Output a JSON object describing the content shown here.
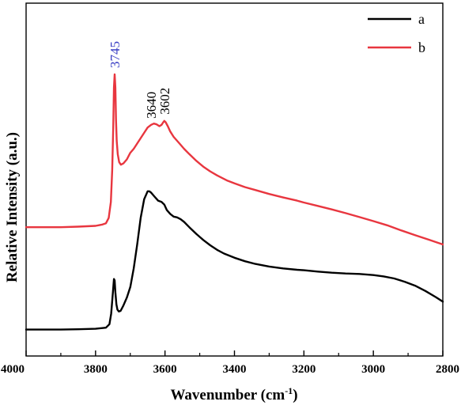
{
  "chart_data": {
    "type": "line",
    "title": "",
    "xlabel": "Wavenumber (cm",
    "xlabel_sup": "-1",
    "xlabel_end": ")",
    "ylabel": "Relative Intensity (a.u.)",
    "xlim": [
      4000,
      2800
    ],
    "ylim": [
      0,
      1.2
    ],
    "x_reversed": true,
    "y_ticks_labeled": false,
    "grid": false,
    "legend_position": "top-right",
    "x_ticks": [
      4000,
      3800,
      3600,
      3400,
      3200,
      3000,
      2800
    ],
    "x_tick_labels": [
      "4000",
      "3800",
      "3600",
      "3400",
      "3200",
      "3000",
      "2800"
    ],
    "series": [
      {
        "name": "a",
        "color": "#000000",
        "x": [
          4000,
          3900,
          3850,
          3800,
          3770,
          3760,
          3755,
          3750,
          3747,
          3745,
          3743,
          3740,
          3737,
          3733,
          3728,
          3720,
          3710,
          3700,
          3690,
          3680,
          3670,
          3660,
          3650,
          3645,
          3640,
          3630,
          3620,
          3610,
          3602,
          3595,
          3585,
          3575,
          3565,
          3555,
          3545,
          3530,
          3510,
          3490,
          3470,
          3450,
          3430,
          3400,
          3370,
          3340,
          3300,
          3260,
          3220,
          3200,
          3160,
          3120,
          3080,
          3040,
          3000,
          2970,
          2940,
          2910,
          2880,
          2850,
          2820,
          2800
        ],
        "y": [
          0.04,
          0.04,
          0.041,
          0.043,
          0.047,
          0.06,
          0.1,
          0.18,
          0.23,
          0.225,
          0.18,
          0.135,
          0.115,
          0.108,
          0.11,
          0.13,
          0.16,
          0.2,
          0.27,
          0.36,
          0.46,
          0.53,
          0.56,
          0.56,
          0.555,
          0.54,
          0.525,
          0.52,
          0.51,
          0.49,
          0.475,
          0.465,
          0.462,
          0.455,
          0.445,
          0.425,
          0.4,
          0.377,
          0.357,
          0.34,
          0.326,
          0.31,
          0.297,
          0.287,
          0.277,
          0.27,
          0.265,
          0.263,
          0.258,
          0.254,
          0.251,
          0.249,
          0.245,
          0.24,
          0.232,
          0.22,
          0.205,
          0.185,
          0.162,
          0.145
        ]
      },
      {
        "name": "b",
        "color": "#e8363f",
        "x": [
          4000,
          3900,
          3850,
          3800,
          3780,
          3770,
          3762,
          3756,
          3752,
          3749,
          3747,
          3745,
          3743,
          3741,
          3739,
          3736,
          3732,
          3727,
          3720,
          3710,
          3700,
          3690,
          3680,
          3670,
          3660,
          3650,
          3640,
          3632,
          3624,
          3616,
          3610,
          3605,
          3602,
          3598,
          3592,
          3585,
          3575,
          3565,
          3555,
          3545,
          3530,
          3510,
          3490,
          3470,
          3450,
          3420,
          3400,
          3370,
          3340,
          3300,
          3260,
          3220,
          3200,
          3160,
          3120,
          3080,
          3040,
          3000,
          2960,
          2920,
          2880,
          2840,
          2800
        ],
        "y": [
          0.425,
          0.425,
          0.427,
          0.43,
          0.435,
          0.44,
          0.46,
          0.52,
          0.64,
          0.8,
          0.95,
          1.0,
          0.95,
          0.83,
          0.75,
          0.7,
          0.67,
          0.66,
          0.665,
          0.68,
          0.705,
          0.72,
          0.74,
          0.76,
          0.78,
          0.8,
          0.81,
          0.815,
          0.812,
          0.805,
          0.81,
          0.82,
          0.825,
          0.82,
          0.805,
          0.785,
          0.765,
          0.75,
          0.735,
          0.72,
          0.7,
          0.675,
          0.653,
          0.635,
          0.62,
          0.6,
          0.59,
          0.576,
          0.565,
          0.55,
          0.537,
          0.525,
          0.518,
          0.505,
          0.492,
          0.478,
          0.463,
          0.448,
          0.432,
          0.413,
          0.395,
          0.378,
          0.36
        ]
      }
    ],
    "annotations": [
      {
        "text": "3745",
        "x": 3745,
        "y": 1.0,
        "color": "#3a3fc4"
      },
      {
        "text": "3640",
        "x": 3640,
        "y": 0.81,
        "color": "#000000"
      },
      {
        "text": "3602",
        "x": 3602,
        "y": 0.825,
        "color": "#000000"
      }
    ]
  }
}
